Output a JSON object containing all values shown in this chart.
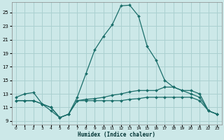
{
  "xlabel": "Humidex (Indice chaleur)",
  "bg_color": "#cce8e8",
  "grid_color": "#aad0d0",
  "line_color": "#1a6e6a",
  "xlim": [
    -0.5,
    23.5
  ],
  "ylim": [
    8.5,
    26.5
  ],
  "xticks": [
    0,
    1,
    2,
    3,
    4,
    5,
    6,
    7,
    8,
    9,
    10,
    11,
    12,
    13,
    14,
    15,
    16,
    17,
    18,
    19,
    20,
    21,
    22,
    23
  ],
  "yticks": [
    9,
    11,
    13,
    15,
    17,
    19,
    21,
    23,
    25
  ],
  "line1_x": [
    0,
    1,
    2,
    3,
    4,
    5,
    6,
    7,
    8,
    9,
    10,
    11,
    12,
    13,
    14,
    15,
    16,
    17,
    18,
    19,
    20,
    21,
    22,
    23
  ],
  "line1_y": [
    12.5,
    13.0,
    13.2,
    11.5,
    10.5,
    9.5,
    10.0,
    12.5,
    16.0,
    19.5,
    21.5,
    23.2,
    26.0,
    26.1,
    24.5,
    20.0,
    18.0,
    15.0,
    14.0,
    13.5,
    13.0,
    12.5,
    10.5,
    10.0
  ],
  "line2_x": [
    0,
    1,
    2,
    3,
    4,
    5,
    6,
    7,
    8,
    9,
    10,
    11,
    12,
    13,
    14,
    15,
    16,
    17,
    18,
    19,
    20,
    21,
    22,
    23
  ],
  "line2_y": [
    12.0,
    12.0,
    12.0,
    11.5,
    11.0,
    9.5,
    10.0,
    12.0,
    12.2,
    12.3,
    12.5,
    12.8,
    13.0,
    13.3,
    13.5,
    13.5,
    13.5,
    14.0,
    14.0,
    13.5,
    13.5,
    13.0,
    10.5,
    10.0
  ],
  "line3_x": [
    0,
    1,
    2,
    3,
    4,
    5,
    6,
    7,
    8,
    9,
    10,
    11,
    12,
    13,
    14,
    15,
    16,
    17,
    18,
    19,
    20,
    21,
    22,
    23
  ],
  "line3_y": [
    12.0,
    12.0,
    12.0,
    11.5,
    11.0,
    9.5,
    10.0,
    12.0,
    12.0,
    12.0,
    12.0,
    12.0,
    12.0,
    12.2,
    12.3,
    12.5,
    12.5,
    12.5,
    12.5,
    12.5,
    12.5,
    12.0,
    10.5,
    10.0
  ]
}
